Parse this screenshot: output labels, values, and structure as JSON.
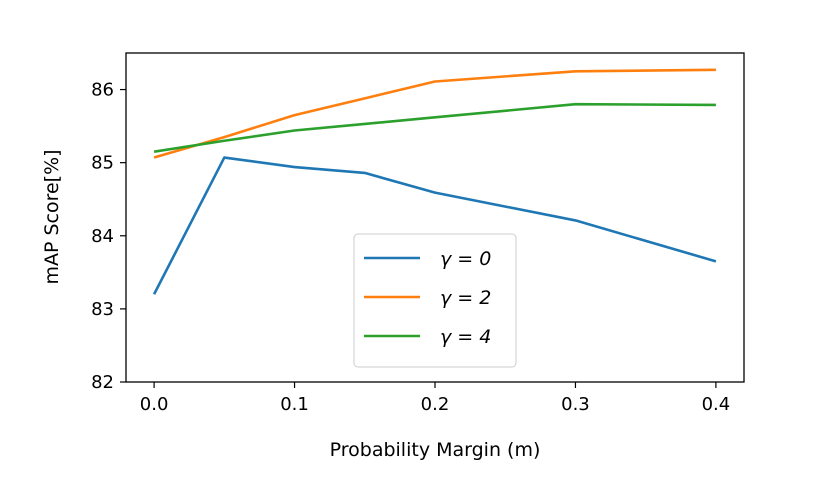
{
  "chart_data": {
    "type": "line",
    "xlabel": "Probability Margin (m)",
    "ylabel": "mAP Score[%]",
    "xlim": [
      -0.02,
      0.42
    ],
    "ylim": [
      82,
      86.5
    ],
    "xticks": [
      0.0,
      0.1,
      0.2,
      0.3,
      0.4
    ],
    "xtick_labels": [
      "0.0",
      "0.1",
      "0.2",
      "0.3",
      "0.4"
    ],
    "yticks": [
      82,
      83,
      84,
      85,
      86
    ],
    "ytick_labels": [
      "82",
      "83",
      "84",
      "85",
      "86"
    ],
    "grid": false,
    "legend_position": "lower-center",
    "x": [
      0.0,
      0.05,
      0.1,
      0.15,
      0.2,
      0.3,
      0.4
    ],
    "series": [
      {
        "name": "γ = 0",
        "color": "#1f77b4",
        "values": [
          83.2,
          85.07,
          84.94,
          84.86,
          84.59,
          84.21,
          83.65
        ]
      },
      {
        "name": "γ = 2",
        "color": "#ff7f0e",
        "values": [
          85.07,
          85.35,
          85.65,
          85.88,
          86.11,
          86.25,
          86.27
        ]
      },
      {
        "name": "γ = 4",
        "color": "#2ca02c",
        "values": [
          85.15,
          85.3,
          85.44,
          85.53,
          85.62,
          85.8,
          85.79
        ]
      }
    ]
  }
}
